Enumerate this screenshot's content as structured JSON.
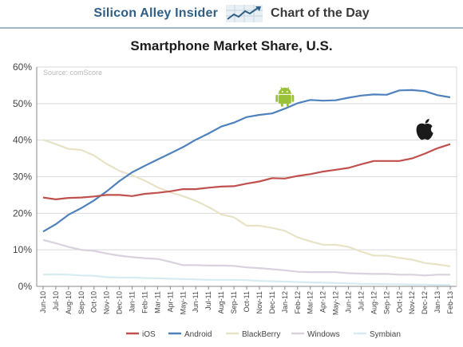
{
  "header": {
    "brand": "Silicon Alley Insider",
    "label": "Chart of the Day"
  },
  "chart_data": {
    "type": "line",
    "title": "Smartphone Market Share, U.S.",
    "source": "Source: comScore",
    "xlabel": "",
    "ylabel": "",
    "ylim": [
      0,
      60
    ],
    "yticks": [
      "0%",
      "10%",
      "20%",
      "30%",
      "40%",
      "50%",
      "60%"
    ],
    "grid": true,
    "legend_position": "bottom",
    "categories": [
      "Jun-10",
      "Jul-10",
      "Aug-10",
      "Sep-10",
      "Oct-10",
      "Nov-10",
      "Dec-10",
      "Jan-11",
      "Feb-11",
      "Mar-11",
      "Apr-11",
      "May-11",
      "Jun-11",
      "Jul-11",
      "Aug-11",
      "Sep-11",
      "Oct-11",
      "Nov-11",
      "Dec-11",
      "Jan-12",
      "Feb-12",
      "Mar-12",
      "Apr-12",
      "May-12",
      "Jun-12",
      "Jul-12",
      "Aug-12",
      "Sep-12",
      "Oct-12",
      "Nov-12",
      "Dec-12",
      "Jan-13",
      "Feb-13"
    ],
    "series": [
      {
        "name": "iOS",
        "color": "#c0504d",
        "values": [
          24.3,
          23.8,
          24.2,
          24.3,
          24.6,
          25.0,
          25.0,
          24.7,
          25.3,
          25.6,
          26.0,
          26.6,
          26.6,
          27.0,
          27.3,
          27.4,
          28.1,
          28.7,
          29.6,
          29.5,
          30.2,
          30.7,
          31.4,
          31.9,
          32.4,
          33.4,
          34.3,
          34.3,
          34.3,
          35.0,
          36.3,
          37.8,
          38.9
        ]
      },
      {
        "name": "Android",
        "color": "#4f81bd",
        "values": [
          15.0,
          17.0,
          19.6,
          21.4,
          23.5,
          26.0,
          28.8,
          31.2,
          33.0,
          34.7,
          36.4,
          38.1,
          40.1,
          41.8,
          43.7,
          44.8,
          46.3,
          46.9,
          47.3,
          48.6,
          50.1,
          51.0,
          50.8,
          50.9,
          51.6,
          52.2,
          52.5,
          52.4,
          53.6,
          53.7,
          53.4,
          52.3,
          51.7
        ]
      },
      {
        "name": "BlackBerry",
        "color": "#e8e3c6",
        "values": [
          40.1,
          38.9,
          37.6,
          37.3,
          35.8,
          33.5,
          31.6,
          30.4,
          28.9,
          27.1,
          25.7,
          24.7,
          23.4,
          21.7,
          19.7,
          18.9,
          16.6,
          16.6,
          16.0,
          15.2,
          13.4,
          12.3,
          11.4,
          11.4,
          10.8,
          9.5,
          8.4,
          8.4,
          7.8,
          7.3,
          6.4,
          6.0,
          5.5
        ]
      },
      {
        "name": "Windows",
        "color": "#d9d2de",
        "values": [
          12.7,
          11.8,
          10.8,
          10.0,
          9.7,
          9.0,
          8.4,
          8.0,
          7.7,
          7.5,
          6.7,
          5.8,
          5.8,
          5.7,
          5.7,
          5.6,
          5.2,
          5.0,
          4.7,
          4.4,
          4.0,
          3.9,
          3.9,
          3.9,
          3.6,
          3.5,
          3.4,
          3.4,
          3.2,
          3.2,
          3.0,
          3.2,
          3.2
        ]
      },
      {
        "name": "Symbian",
        "color": "#d6ecf2",
        "values": [
          3.2,
          3.3,
          3.2,
          3.0,
          2.9,
          2.5,
          2.4,
          2.4,
          2.3,
          2.2,
          2.1,
          2.0,
          1.9,
          1.8,
          1.8,
          1.8,
          1.7,
          1.5,
          1.4,
          1.3,
          1.2,
          1.1,
          1.0,
          0.9,
          0.8,
          0.7,
          0.7,
          0.6,
          0.6,
          0.5,
          0.5,
          0.4,
          0.4
        ]
      }
    ],
    "annotations": [
      {
        "icon": "android-logo-icon",
        "series": "Android",
        "color": "#9bc13b"
      },
      {
        "icon": "apple-logo-icon",
        "series": "iOS",
        "color": "#1a1a1a"
      }
    ]
  }
}
